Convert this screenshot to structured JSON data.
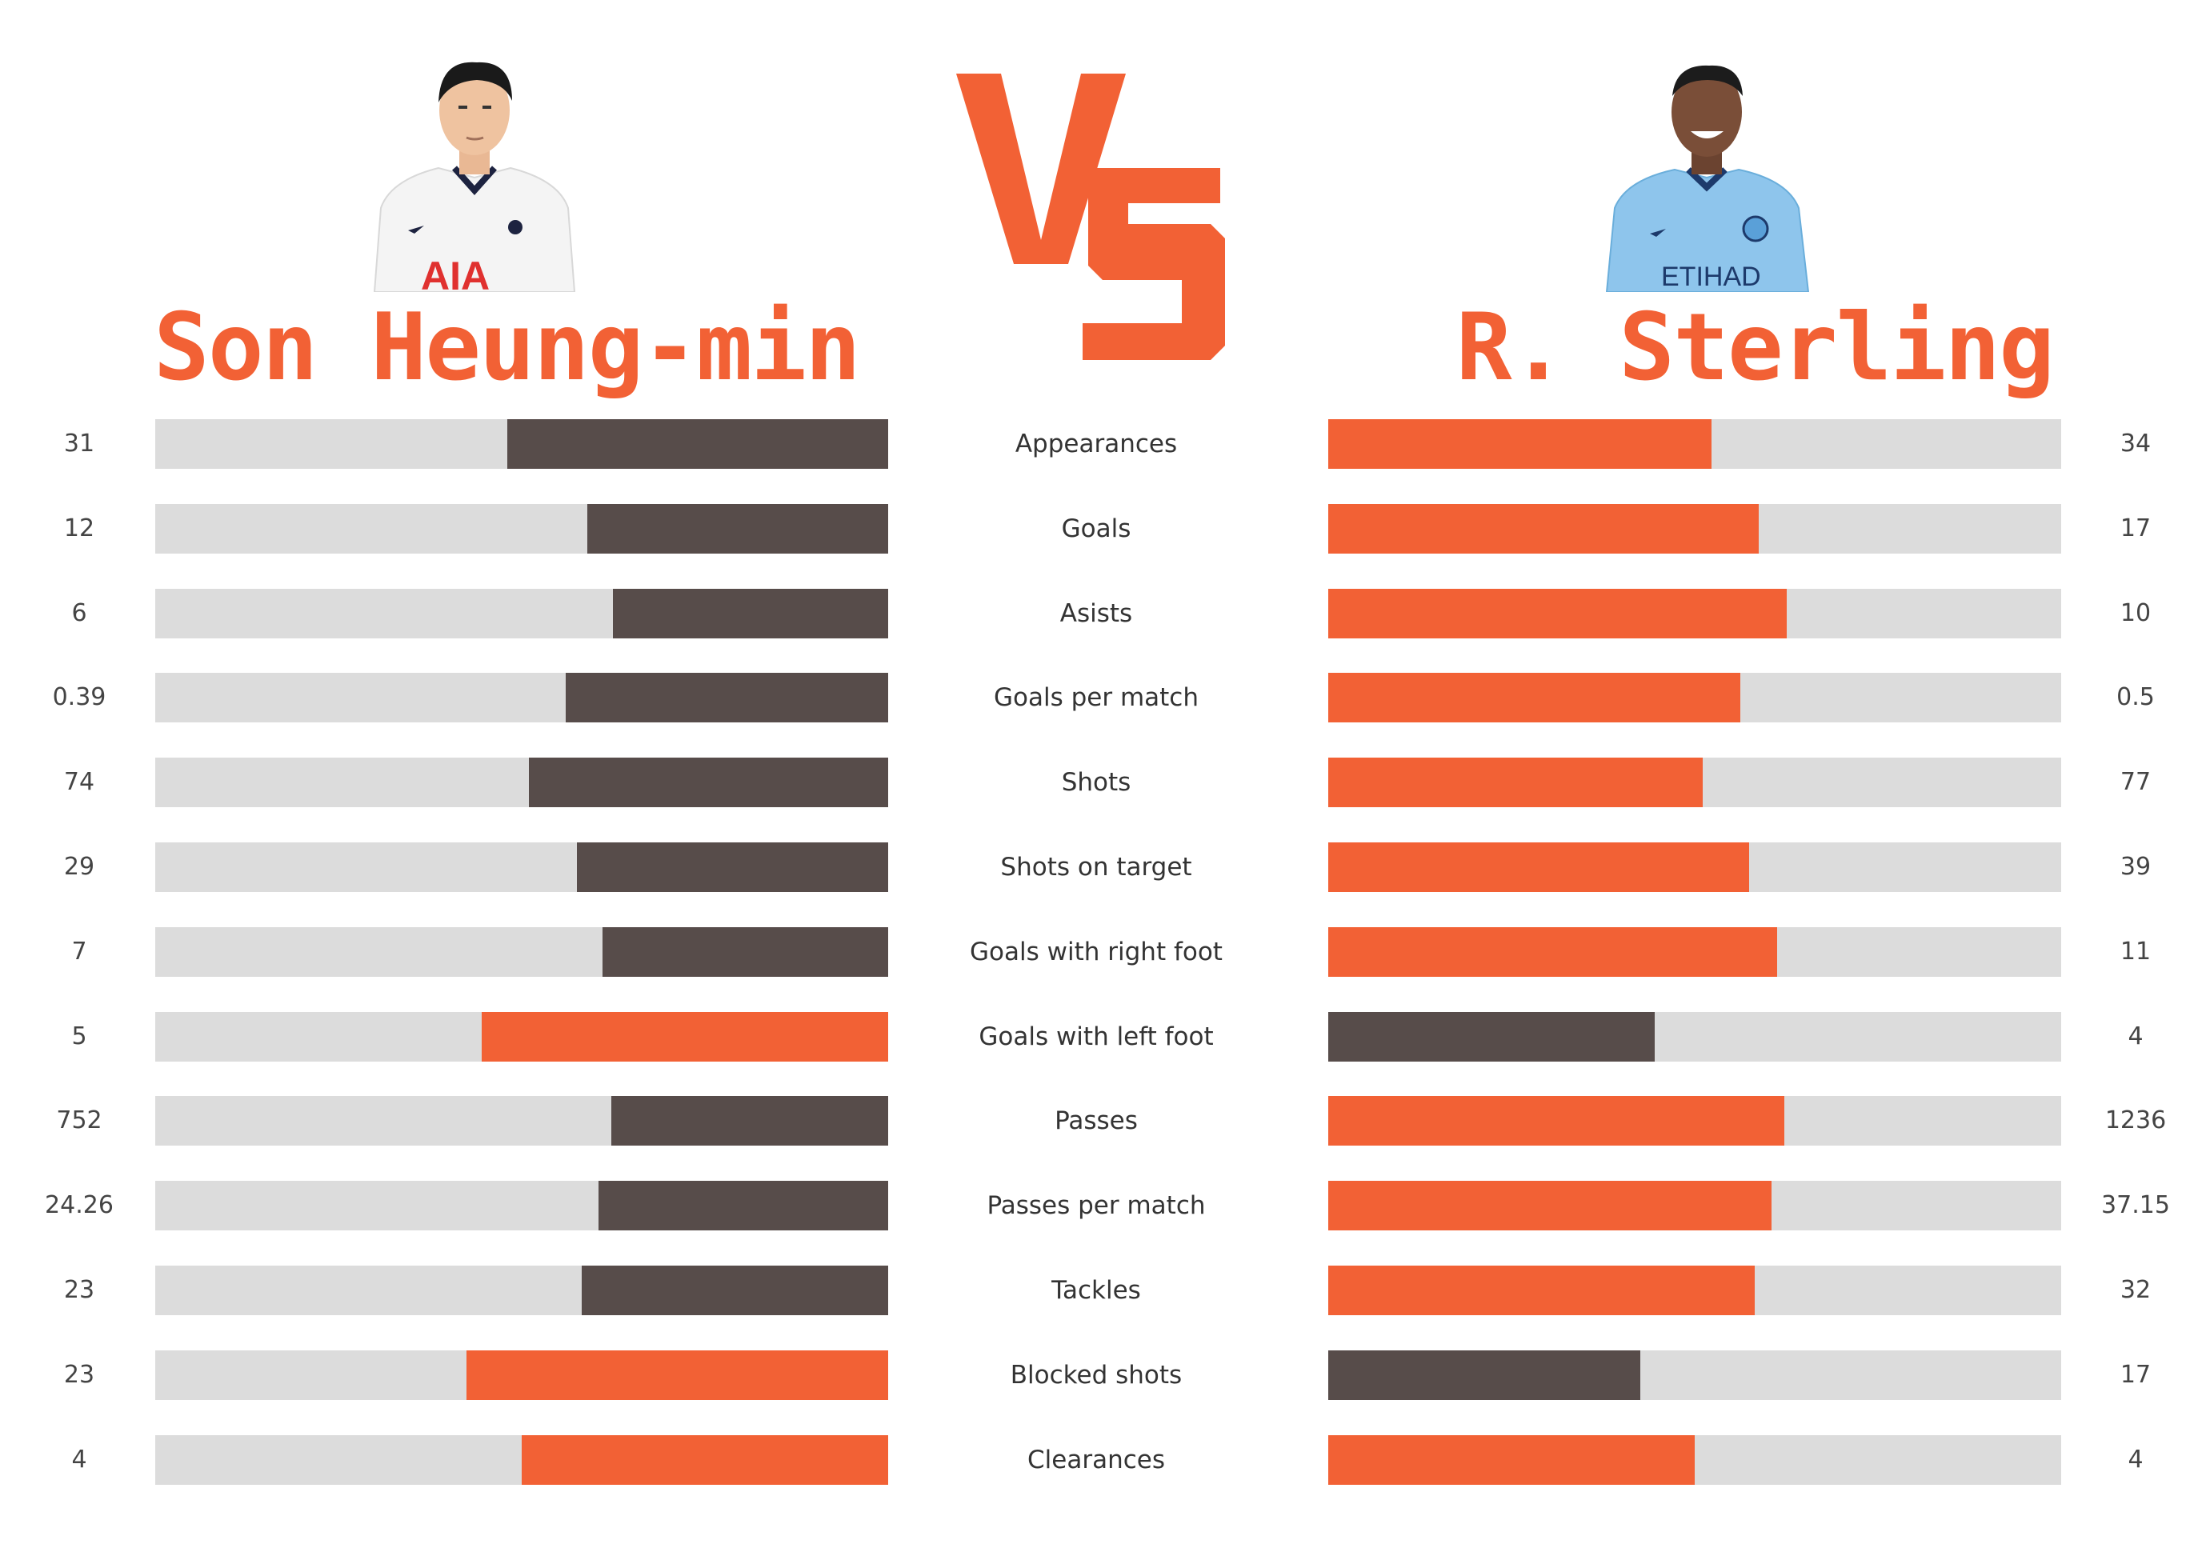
{
  "players": {
    "left": {
      "name": "Son Heung-min",
      "shirt_text": "AIA"
    },
    "right": {
      "name": "R. Sterling",
      "shirt_text": "ETIHAD"
    }
  },
  "vs_text": "VS",
  "colors": {
    "accent": "#f26135",
    "dark": "#574c4a",
    "track": "#dcdcdc"
  },
  "chart_data": {
    "type": "bar",
    "categories": [
      "Appearances",
      "Goals",
      "Asists",
      "Goals per match",
      "Shots",
      "Shots on target",
      "Goals with right foot",
      "Goals with left foot",
      "Passes",
      "Passes per match",
      "Tackles",
      "Blocked shots",
      "Clearances"
    ],
    "series": [
      {
        "name": "Son Heung-min",
        "values": [
          31,
          12,
          6,
          0.39,
          74,
          29,
          7,
          5,
          752,
          24.26,
          23,
          23,
          4
        ],
        "labels": [
          "31",
          "12",
          "6",
          "0.39",
          "74",
          "29",
          "7",
          "5",
          "752",
          "24.26",
          "23",
          "23",
          "4"
        ],
        "fill_fraction": [
          0.52,
          0.41,
          0.375,
          0.44,
          0.49,
          0.425,
          0.39,
          0.555,
          0.378,
          0.395,
          0.418,
          0.575,
          0.5
        ],
        "highlighted": [
          false,
          false,
          false,
          false,
          false,
          false,
          false,
          true,
          false,
          false,
          false,
          true,
          true
        ]
      },
      {
        "name": "R. Sterling",
        "values": [
          34,
          17,
          10,
          0.5,
          77,
          39,
          11,
          4,
          1236,
          37.15,
          32,
          17,
          4
        ],
        "labels": [
          "34",
          "17",
          "10",
          "0.5",
          "77",
          "39",
          "11",
          "4",
          "1236",
          "37.15",
          "32",
          "17",
          "4"
        ],
        "fill_fraction": [
          0.523,
          0.587,
          0.625,
          0.562,
          0.511,
          0.574,
          0.612,
          0.445,
          0.622,
          0.605,
          0.582,
          0.426,
          0.5
        ],
        "highlighted": [
          true,
          true,
          true,
          true,
          true,
          true,
          true,
          false,
          true,
          true,
          true,
          false,
          true
        ]
      }
    ]
  }
}
